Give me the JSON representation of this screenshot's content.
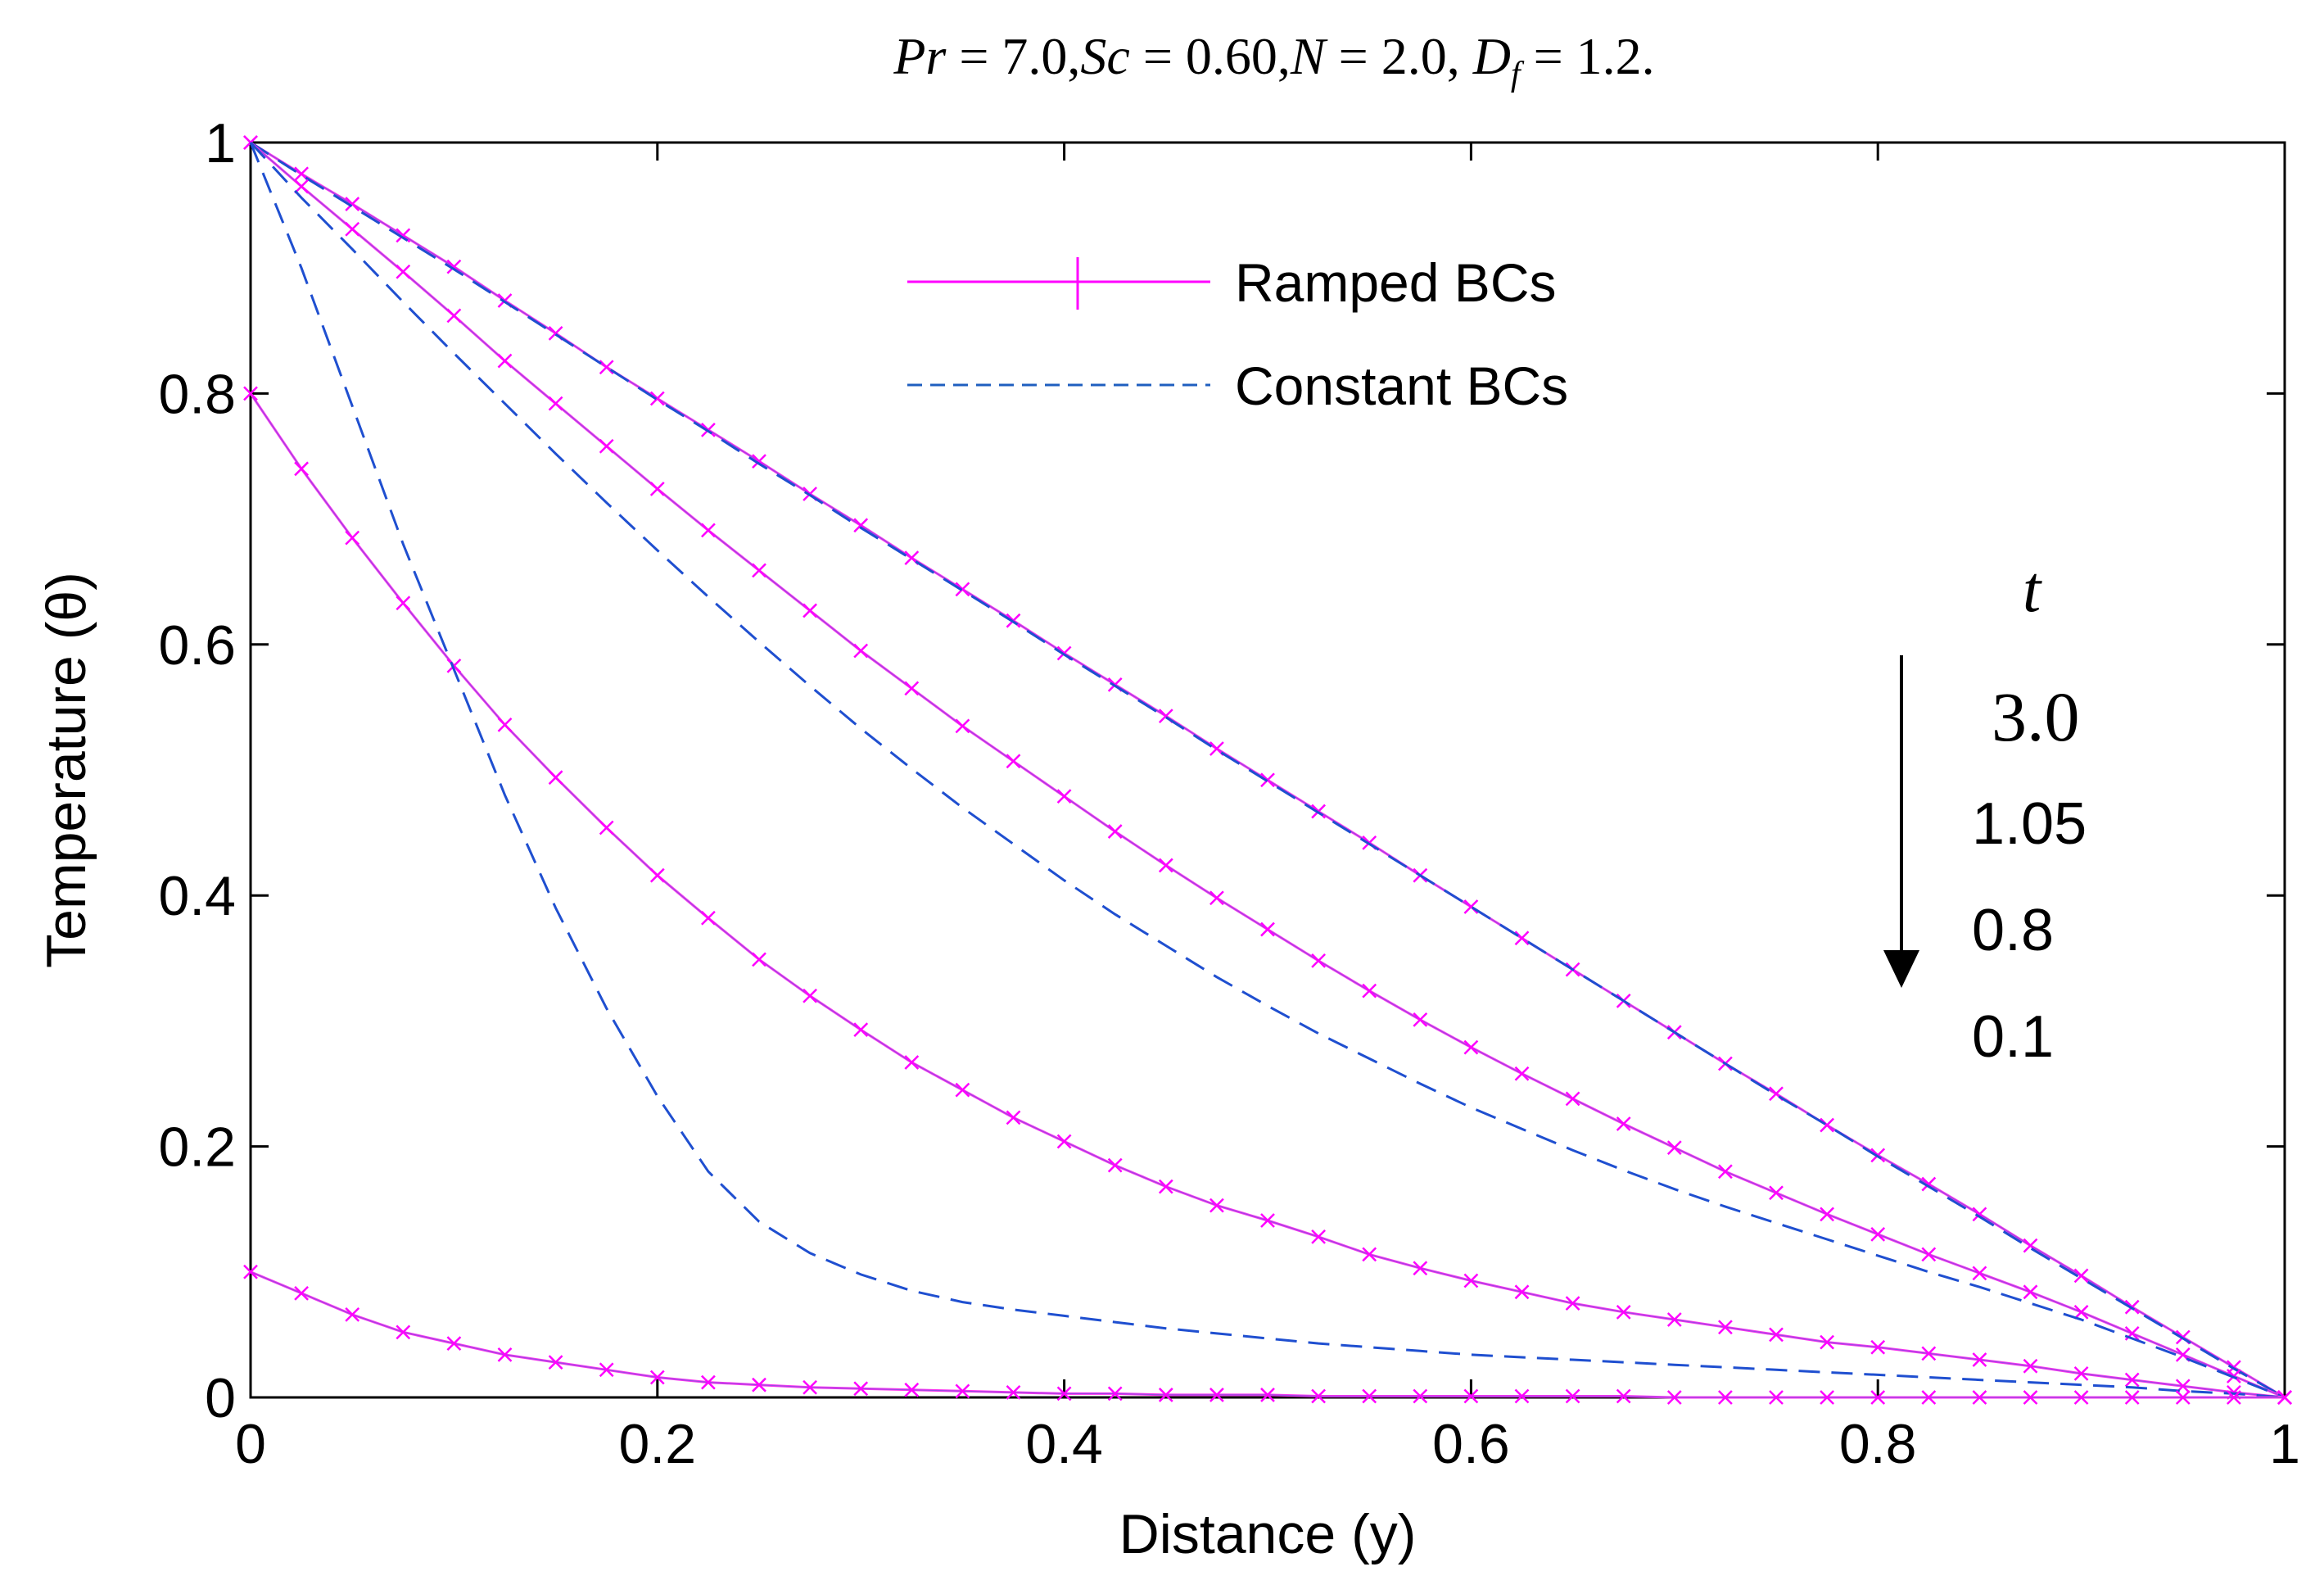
{
  "chart_data": {
    "type": "line",
    "title": "Pr = 7.0, Sc = 0.60, N = 2.0, D_f = 1.2.",
    "title_parts": {
      "pr_name": "Pr",
      "pr_value": "7.0",
      "sc_name": "Sc",
      "sc_value": "0.60",
      "n_name": "N",
      "n_value": "2.0",
      "df_name": "D",
      "df_sub": "f",
      "df_value": "1.2",
      "equals": "=",
      "comma": ",",
      "period": "."
    },
    "xlabel": "Distance (y)",
    "ylabel": "Temperature (θ)",
    "xlim": [
      0,
      1
    ],
    "ylim": [
      0,
      1
    ],
    "xticks": [
      0,
      0.2,
      0.4,
      0.6,
      0.8,
      1
    ],
    "yticks": [
      0,
      0.2,
      0.4,
      0.6,
      0.8,
      1
    ],
    "xtick_labels": [
      "0",
      "0.2",
      "0.4",
      "0.6",
      "0.8",
      "1"
    ],
    "ytick_labels": [
      "0",
      "0.2",
      "0.4",
      "0.6",
      "0.8",
      "1"
    ],
    "grid": false,
    "legend": {
      "position": "top-center",
      "entries": [
        {
          "label": "Ramped BCs",
          "style": "solid-x-marker",
          "color": "#ff00ff"
        },
        {
          "label": "Constant BCs",
          "style": "dashed",
          "color": "#0000cc"
        }
      ]
    },
    "annotation": {
      "parameter": "t",
      "values": [
        "3.0",
        "1.05",
        "0.8",
        "0.1"
      ],
      "arrow": "down"
    },
    "x": [
      0,
      0.025,
      0.05,
      0.075,
      0.1,
      0.125,
      0.15,
      0.175,
      0.2,
      0.225,
      0.25,
      0.275,
      0.3,
      0.325,
      0.35,
      0.375,
      0.4,
      0.425,
      0.45,
      0.475,
      0.5,
      0.525,
      0.55,
      0.575,
      0.6,
      0.625,
      0.65,
      0.675,
      0.7,
      0.725,
      0.75,
      0.775,
      0.8,
      0.825,
      0.85,
      0.875,
      0.9,
      0.925,
      0.95,
      0.975,
      1.0
    ],
    "series": [
      {
        "name": "Ramped BCs, t = 3.0",
        "group": "Ramped BCs",
        "t": "3.0",
        "color": "#ff00ff",
        "dash": false,
        "marker": "x",
        "values": [
          1.0,
          0.975,
          0.951,
          0.926,
          0.901,
          0.874,
          0.848,
          0.821,
          0.796,
          0.771,
          0.746,
          0.72,
          0.695,
          0.669,
          0.644,
          0.619,
          0.593,
          0.568,
          0.543,
          0.517,
          0.492,
          0.467,
          0.442,
          0.416,
          0.391,
          0.366,
          0.341,
          0.316,
          0.291,
          0.266,
          0.242,
          0.217,
          0.193,
          0.17,
          0.146,
          0.121,
          0.097,
          0.072,
          0.048,
          0.024,
          0.0
        ]
      },
      {
        "name": "Constant BCs, t = 3.0",
        "group": "Constant BCs",
        "t": "3.0",
        "color": "#0000cc",
        "dash": true,
        "marker": "none",
        "values": [
          1.0,
          0.974,
          0.949,
          0.924,
          0.899,
          0.873,
          0.847,
          0.821,
          0.795,
          0.77,
          0.744,
          0.719,
          0.693,
          0.668,
          0.643,
          0.618,
          0.592,
          0.567,
          0.542,
          0.516,
          0.491,
          0.466,
          0.441,
          0.416,
          0.391,
          0.366,
          0.341,
          0.316,
          0.291,
          0.266,
          0.241,
          0.217,
          0.192,
          0.168,
          0.144,
          0.119,
          0.095,
          0.071,
          0.047,
          0.023,
          0.0
        ]
      },
      {
        "name": "Ramped BCs, t = 1.05",
        "group": "Ramped BCs",
        "t": "1.05",
        "color": "#ff00ff",
        "dash": false,
        "marker": "x",
        "values": [
          1.0,
          0.965,
          0.931,
          0.897,
          0.862,
          0.826,
          0.792,
          0.758,
          0.724,
          0.691,
          0.659,
          0.627,
          0.595,
          0.565,
          0.535,
          0.507,
          0.479,
          0.451,
          0.424,
          0.398,
          0.373,
          0.348,
          0.324,
          0.301,
          0.279,
          0.258,
          0.238,
          0.218,
          0.199,
          0.18,
          0.163,
          0.146,
          0.13,
          0.114,
          0.099,
          0.084,
          0.068,
          0.051,
          0.034,
          0.017,
          0.0
        ]
      },
      {
        "name": "Constant BCs, t = 1.05",
        "group": "Constant BCs",
        "t": "1.05",
        "color": "#0000cc",
        "dash": true,
        "marker": "none",
        "values": [
          1.0,
          0.956,
          0.915,
          0.873,
          0.832,
          0.792,
          0.752,
          0.713,
          0.675,
          0.638,
          0.602,
          0.567,
          0.533,
          0.501,
          0.47,
          0.441,
          0.412,
          0.385,
          0.36,
          0.335,
          0.312,
          0.29,
          0.27,
          0.25,
          0.231,
          0.214,
          0.197,
          0.181,
          0.166,
          0.152,
          0.139,
          0.126,
          0.113,
          0.1,
          0.088,
          0.075,
          0.062,
          0.047,
          0.032,
          0.016,
          0.0
        ]
      },
      {
        "name": "Ramped BCs, t = 0.8",
        "group": "Ramped BCs",
        "t": "0.8",
        "color": "#ff00ff",
        "dash": false,
        "marker": "x",
        "values": [
          0.8,
          0.74,
          0.685,
          0.633,
          0.583,
          0.536,
          0.494,
          0.454,
          0.416,
          0.382,
          0.349,
          0.32,
          0.293,
          0.267,
          0.245,
          0.223,
          0.204,
          0.185,
          0.168,
          0.153,
          0.141,
          0.128,
          0.114,
          0.103,
          0.093,
          0.084,
          0.075,
          0.068,
          0.062,
          0.056,
          0.05,
          0.044,
          0.04,
          0.035,
          0.03,
          0.025,
          0.019,
          0.014,
          0.009,
          0.004,
          0.0
        ]
      },
      {
        "name": "Constant BCs, t = 0.8",
        "group": "Constant BCs",
        "t": "0.8",
        "color": "#0000cc",
        "dash": true,
        "marker": "none",
        "values": [
          1.0,
          0.9,
          0.79,
          0.68,
          0.58,
          0.48,
          0.39,
          0.31,
          0.24,
          0.18,
          0.14,
          0.115,
          0.098,
          0.085,
          0.076,
          0.07,
          0.065,
          0.06,
          0.055,
          0.051,
          0.047,
          0.043,
          0.04,
          0.037,
          0.034,
          0.032,
          0.03,
          0.028,
          0.026,
          0.024,
          0.022,
          0.02,
          0.018,
          0.016,
          0.014,
          0.012,
          0.01,
          0.008,
          0.005,
          0.003,
          0.0
        ]
      },
      {
        "name": "Ramped BCs, t = 0.1",
        "group": "Ramped BCs",
        "t": "0.1",
        "color": "#ff00ff",
        "dash": false,
        "marker": "x",
        "values": [
          0.1,
          0.083,
          0.066,
          0.052,
          0.043,
          0.034,
          0.028,
          0.022,
          0.016,
          0.012,
          0.01,
          0.008,
          0.007,
          0.006,
          0.005,
          0.004,
          0.003,
          0.003,
          0.002,
          0.002,
          0.002,
          0.001,
          0.001,
          0.001,
          0.001,
          0.001,
          0.001,
          0.001,
          0.0,
          0.0,
          0.0,
          0.0,
          0.0,
          0.0,
          0.0,
          0.0,
          0.0,
          0.0,
          0.0,
          0.0,
          0.0
        ]
      }
    ]
  }
}
